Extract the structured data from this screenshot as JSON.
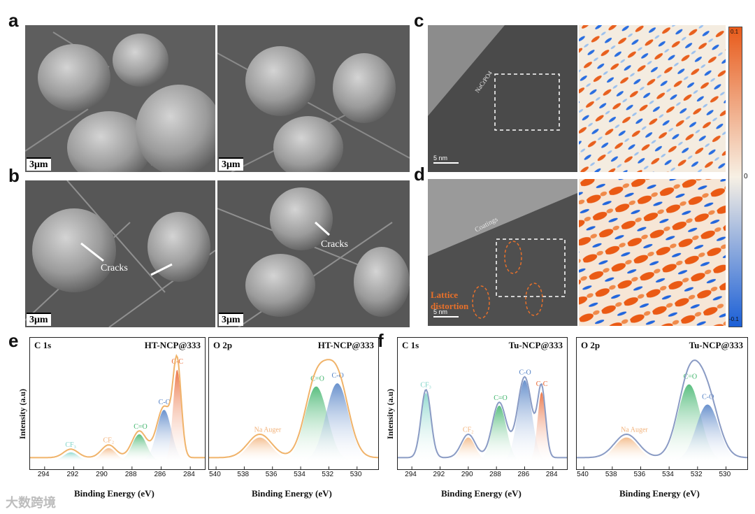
{
  "panels": {
    "a": "a",
    "b": "b",
    "c": "c",
    "d": "d",
    "e": "e",
    "f": "f"
  },
  "sem": {
    "scale_label": "3μm",
    "cracks_label": "Cracks"
  },
  "tem": {
    "scale_label": "5 nm",
    "c_coating": "NaCrPO4",
    "d_coating": "Coatings",
    "lattice_1": "Lattice",
    "lattice_2": "distortion"
  },
  "colorbar": {
    "top": "0.1",
    "mid": "0",
    "bottom": "-0.1",
    "colors": [
      "#e85a1a",
      "#f7f0e4",
      "#1b5fd6"
    ]
  },
  "xps": {
    "ylabel": "Intensity (a.u)",
    "xlabel": "Binding Energy (eV)",
    "c1s": "C 1s",
    "o2p": "O 2p",
    "ht": "HT-NCP@333",
    "tu": "Tu-NCP@333",
    "c_ticks": [
      "294",
      "292",
      "290",
      "288",
      "286",
      "284"
    ],
    "o_ticks": [
      "540",
      "538",
      "536",
      "534",
      "532",
      "530"
    ],
    "peaks": {
      "cf3": "CF₃",
      "cf2": "CF₂",
      "c_eq_o": "C=O",
      "c_o": "C-O",
      "c_c": "C-C",
      "na_auger": "Na Auger"
    }
  },
  "watermark": "大数跨境",
  "chart_data": [
    {
      "type": "area",
      "title": "HT-NCP@333",
      "subtitle": "C 1s",
      "xlabel": "Binding Energy (eV)",
      "ylabel": "Intensity (a.u)",
      "xlim": [
        295,
        283
      ],
      "series": [
        {
          "name": "CF₃",
          "center": 292.2,
          "height": 0.08,
          "color": "#7fd3c7"
        },
        {
          "name": "CF₂",
          "center": 289.6,
          "height": 0.12,
          "color": "#f2b27a"
        },
        {
          "name": "C=O",
          "center": 287.5,
          "height": 0.25,
          "color": "#3db36a"
        },
        {
          "name": "C-O",
          "center": 285.8,
          "height": 0.48,
          "color": "#4f7ec4"
        },
        {
          "name": "C-C",
          "center": 284.9,
          "height": 0.86,
          "color": "#e8602a"
        }
      ]
    },
    {
      "type": "area",
      "title": "HT-NCP@333",
      "subtitle": "O 2p",
      "xlabel": "Binding Energy (eV)",
      "ylabel": "",
      "xlim": [
        540.5,
        528.5
      ],
      "series": [
        {
          "name": "Na Auger",
          "center": 536.9,
          "height": 0.22,
          "color": "#f2b27a"
        },
        {
          "name": "C=O",
          "center": 532.9,
          "height": 0.7,
          "color": "#3db36a"
        },
        {
          "name": "C-O",
          "center": 531.4,
          "height": 0.73,
          "color": "#4f7ec4"
        }
      ]
    },
    {
      "type": "area",
      "title": "Tu-NCP@333",
      "subtitle": "C 1s",
      "xlabel": "Binding Energy (eV)",
      "ylabel": "Intensity (a.u)",
      "xlim": [
        295,
        283
      ],
      "series": [
        {
          "name": "CF₃",
          "center": 293.0,
          "height": 0.64,
          "color": "#7fd3c7"
        },
        {
          "name": "CF₂",
          "center": 290.0,
          "height": 0.22,
          "color": "#f2b27a"
        },
        {
          "name": "C=O",
          "center": 287.8,
          "height": 0.52,
          "color": "#3db36a"
        },
        {
          "name": "C-O",
          "center": 286.0,
          "height": 0.76,
          "color": "#4f7ec4"
        },
        {
          "name": "C-C",
          "center": 284.8,
          "height": 0.65,
          "color": "#e8602a"
        }
      ]
    },
    {
      "type": "area",
      "title": "Tu-NCP@333",
      "subtitle": "O 2p",
      "xlabel": "Binding Energy (eV)",
      "ylabel": "",
      "xlim": [
        540.5,
        528.5
      ],
      "series": [
        {
          "name": "Na Auger",
          "center": 537.0,
          "height": 0.22,
          "color": "#f2b27a"
        },
        {
          "name": "C=O",
          "center": 532.6,
          "height": 0.72,
          "color": "#3db36a"
        },
        {
          "name": "C-O",
          "center": 531.3,
          "height": 0.53,
          "color": "#4f7ec4"
        }
      ]
    }
  ]
}
